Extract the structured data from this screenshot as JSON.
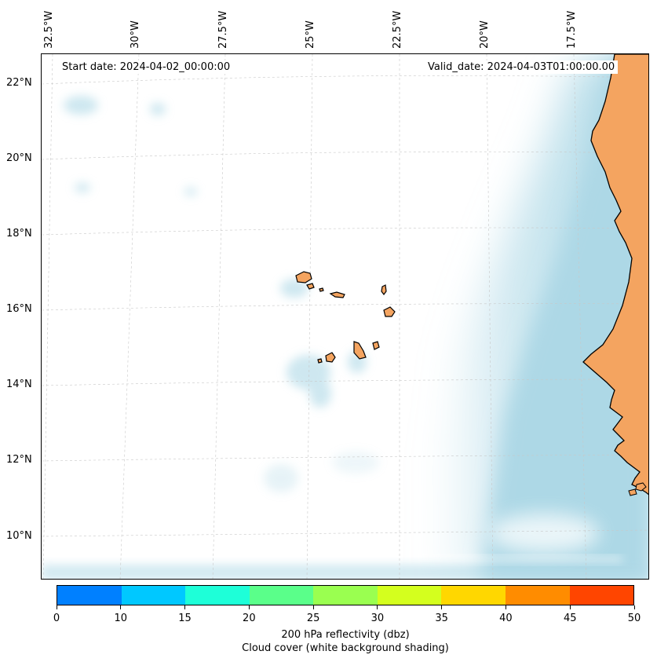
{
  "map": {
    "start_date": "Start date: 2024-04-02_00:00:00",
    "valid_date": "Valid_date: 2024-04-03T01:00:00.00",
    "lon_labels": [
      "32.5°W",
      "30°W",
      "27.5°W",
      "25°W",
      "22.5°W",
      "20°W",
      "17.5°W"
    ],
    "lat_labels": [
      "22°N",
      "20°N",
      "18°N",
      "16°N",
      "14°N",
      "12°N",
      "10°N"
    ],
    "colors": {
      "land": "#f4a460",
      "cloud": "#add8e6",
      "ocean": "#ffffff",
      "coast": "#000000"
    }
  },
  "colorbar": {
    "ticks": [
      "0",
      "10",
      "15",
      "20",
      "25",
      "30",
      "35",
      "40",
      "45",
      "50"
    ],
    "colors": [
      "#0080ff",
      "#00c8ff",
      "#1effd8",
      "#5aff8a",
      "#9aff50",
      "#d4ff1e",
      "#ffd700",
      "#ff8c00",
      "#ff4500"
    ],
    "label": "200 hPa reflectivity (dbz)",
    "sublabel": "Cloud cover (white background shading)"
  }
}
